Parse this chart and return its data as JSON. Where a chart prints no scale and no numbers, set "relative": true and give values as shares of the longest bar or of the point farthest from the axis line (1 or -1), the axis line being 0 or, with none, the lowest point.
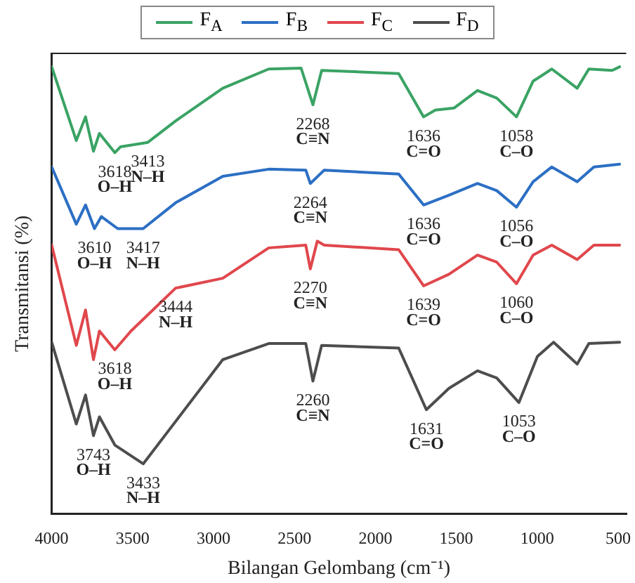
{
  "chart_data": {
    "type": "line",
    "relative": true,
    "xlabel": "Bilangan Gelombang (cm⁻¹)",
    "ylabel": "Transmitansi (%)",
    "xlim": [
      4000,
      450
    ],
    "xticks": [
      4000,
      3500,
      3000,
      2500,
      2000,
      1500,
      1000,
      500
    ],
    "grid": false,
    "legend": "top",
    "marker": "none",
    "line_style": "solid",
    "series": [
      {
        "name": "F$_{A}$",
        "color": "#3aa364",
        "x": [
          4000,
          3848,
          3791,
          3742,
          3705,
          3610,
          3575,
          3406,
          3234,
          2943,
          2659,
          2459,
          2386,
          2332,
          1856,
          1702,
          1630,
          1513,
          1369,
          1250,
          1128,
          1025,
          910,
          753,
          681,
          537,
          491
        ],
        "values": [
          1,
          0.835,
          0.888,
          0.811,
          0.851,
          0.808,
          0.821,
          0.831,
          0.879,
          0.952,
          0.995,
          0.997,
          0.915,
          0.992,
          0.985,
          0.888,
          0.903,
          0.908,
          0.947,
          0.93,
          0.888,
          0.968,
          0.995,
          0.952,
          0.995,
          0.992,
          1
        ]
      },
      {
        "name": "F$_{B}$",
        "color": "#2c6fc4",
        "x": [
          4000,
          3848,
          3791,
          3736,
          3693,
          3592,
          3435,
          3234,
          2943,
          2659,
          2430,
          2402,
          2316,
          1856,
          1702,
          1545,
          1369,
          1250,
          1128,
          1025,
          910,
          753,
          650,
          491
        ],
        "values": [
          0.776,
          0.648,
          0.691,
          0.638,
          0.665,
          0.638,
          0.638,
          0.696,
          0.755,
          0.771,
          0.769,
          0.739,
          0.769,
          0.76,
          0.691,
          0.713,
          0.739,
          0.723,
          0.686,
          0.743,
          0.776,
          0.743,
          0.776,
          0.782
        ]
      },
      {
        "name": "F$_{C}$",
        "color": "#e0474c",
        "x": [
          4000,
          3848,
          3791,
          3742,
          3705,
          3610,
          3510,
          3234,
          2943,
          2659,
          2430,
          2402,
          2359,
          2316,
          1856,
          1702,
          1545,
          1369,
          1250,
          1128,
          1025,
          910,
          753,
          650,
          491
        ],
        "values": [
          0.601,
          0.377,
          0.456,
          0.345,
          0.409,
          0.367,
          0.409,
          0.505,
          0.527,
          0.595,
          0.601,
          0.548,
          0.61,
          0.601,
          0.591,
          0.51,
          0.536,
          0.579,
          0.563,
          0.515,
          0.579,
          0.601,
          0.569,
          0.601,
          0.601
        ]
      },
      {
        "name": "F$_{D}$",
        "color": "#4d4d4d",
        "x": [
          4000,
          3848,
          3791,
          3742,
          3705,
          3610,
          3434,
          3234,
          2943,
          2659,
          2430,
          2386,
          2332,
          1856,
          1685,
          1545,
          1369,
          1250,
          1113,
          999,
          899,
          753,
          681,
          491
        ],
        "values": [
          0.384,
          0.201,
          0.266,
          0.175,
          0.217,
          0.154,
          0.112,
          0.207,
          0.345,
          0.381,
          0.381,
          0.297,
          0.377,
          0.371,
          0.233,
          0.281,
          0.32,
          0.304,
          0.249,
          0.352,
          0.384,
          0.335,
          0.381,
          0.384
        ]
      }
    ],
    "annotations": [
      {
        "text": "3618\nO–H",
        "x": 3610,
        "y": 0.808
      },
      {
        "text": "3413\nN–H",
        "x": 3406,
        "y": 0.831
      },
      {
        "text": "2268\nC≡N",
        "x": 2386,
        "y": 0.915
      },
      {
        "text": "1636\nC=O",
        "x": 1702,
        "y": 0.888
      },
      {
        "text": "1058\nC–O",
        "x": 1128,
        "y": 0.888
      },
      {
        "text": "3610\nO–H",
        "x": 3736,
        "y": 0.638
      },
      {
        "text": "3417\nN–H",
        "x": 3435,
        "y": 0.638
      },
      {
        "text": "2264\nC≡N",
        "x": 2402,
        "y": 0.739
      },
      {
        "text": "1636\nC=O",
        "x": 1702,
        "y": 0.691
      },
      {
        "text": "1056\nC–O",
        "x": 1128,
        "y": 0.686
      },
      {
        "text": "3618\nO–H",
        "x": 3610,
        "y": 0.367
      },
      {
        "text": "3444\nN–H",
        "x": 3234,
        "y": 0.505
      },
      {
        "text": "2270\nC≡N",
        "x": 2402,
        "y": 0.548
      },
      {
        "text": "1639\nC=O",
        "x": 1702,
        "y": 0.51
      },
      {
        "text": "1060\nC–O",
        "x": 1128,
        "y": 0.515
      },
      {
        "text": "3743\nO–H",
        "x": 3742,
        "y": 0.175
      },
      {
        "text": "3433\nN–H",
        "x": 3434,
        "y": 0.112
      },
      {
        "text": "2260\nC≡N",
        "x": 2386,
        "y": 0.297
      },
      {
        "text": "1631\nC=O",
        "x": 1685,
        "y": 0.233
      },
      {
        "text": "1053\nC–O",
        "x": 1113,
        "y": 0.249
      }
    ]
  }
}
